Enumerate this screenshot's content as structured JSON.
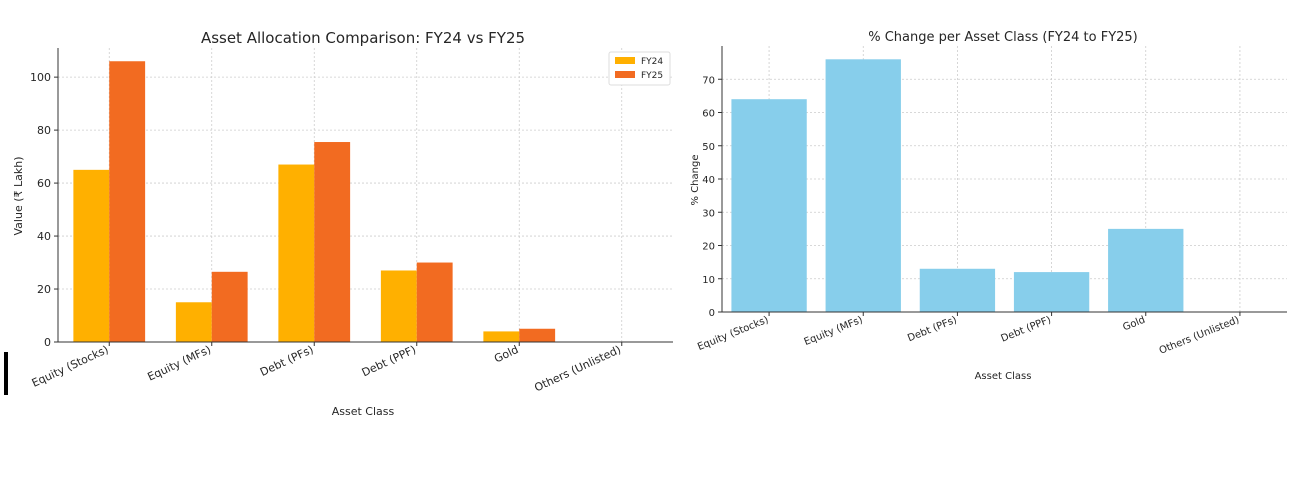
{
  "chart_data": [
    {
      "type": "bar",
      "title": "Asset Allocation Comparison: FY24 vs FY25",
      "xlabel": "Asset Class",
      "ylabel": "Value (₹ Lakh)",
      "categories": [
        "Equity (Stocks)",
        "Equity (MFs)",
        "Debt (PFs)",
        "Debt (PPF)",
        "Gold",
        "Others (Unlisted)"
      ],
      "series": [
        {
          "name": "FY24",
          "color": "#FFB000",
          "values": [
            65,
            15,
            67,
            27,
            4,
            0
          ]
        },
        {
          "name": "FY25",
          "color": "#F26B21",
          "values": [
            106,
            26.5,
            75.5,
            30,
            5,
            0
          ]
        }
      ],
      "ylim": [
        0,
        111
      ],
      "yticks": [
        0,
        20,
        40,
        60,
        80,
        100
      ],
      "grid": true,
      "legend_position": "top-right"
    },
    {
      "type": "bar",
      "title": "% Change per Asset Class (FY24 to FY25)",
      "xlabel": "Asset Class",
      "ylabel": "% Change",
      "categories": [
        "Equity (Stocks)",
        "Equity (MFs)",
        "Debt (PFs)",
        "Debt (PPF)",
        "Gold",
        "Others (Unlisted)"
      ],
      "series": [
        {
          "color": "#87CEEB",
          "values": [
            64,
            76,
            13,
            12,
            25,
            0
          ]
        }
      ],
      "ylim": [
        0,
        80
      ],
      "yticks": [
        0,
        10,
        20,
        30,
        40,
        50,
        60,
        70
      ],
      "grid": true
    }
  ]
}
